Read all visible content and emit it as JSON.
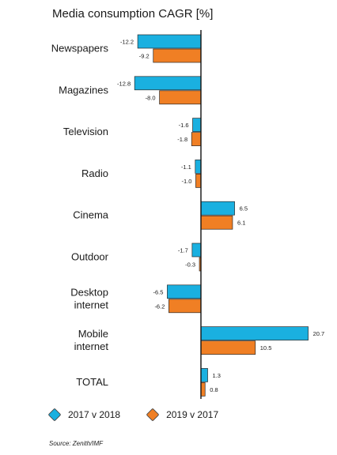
{
  "chart_data": {
    "type": "bar",
    "orientation": "horizontal",
    "title": "Media consumption CAGR [%]",
    "categories": [
      [
        "Newspapers"
      ],
      [
        "Magazines"
      ],
      [
        "Television"
      ],
      [
        "Radio"
      ],
      [
        "Cinema"
      ],
      [
        "Outdoor"
      ],
      [
        "Desktop",
        "internet"
      ],
      [
        "Mobile",
        "internet"
      ],
      [
        "TOTAL"
      ]
    ],
    "series": [
      {
        "name": "2017 v 2018",
        "color": "#1ab0e0",
        "values": [
          -12.2,
          -12.8,
          -1.6,
          -1.1,
          6.5,
          -1.7,
          -6.5,
          20.7,
          1.3
        ],
        "labels": [
          "-12.2",
          "-12.8",
          "-1.6",
          "-1.1",
          "6.5",
          "-1.7",
          "-6.5",
          "20.7",
          "1.3"
        ]
      },
      {
        "name": "2019 v 2017",
        "color": "#f07f24",
        "values": [
          -9.2,
          -8.0,
          -1.8,
          -1.0,
          6.1,
          -0.3,
          -6.2,
          10.5,
          0.8
        ],
        "labels": [
          "-9.2",
          "-8.0",
          "-1.8",
          "-1.0",
          "6.1",
          "-0.3",
          "-6.2",
          "10.5",
          "0.8"
        ]
      }
    ],
    "legend_position": "bottom-left",
    "grid": false
  },
  "source": "Source: Zenith/IMF"
}
